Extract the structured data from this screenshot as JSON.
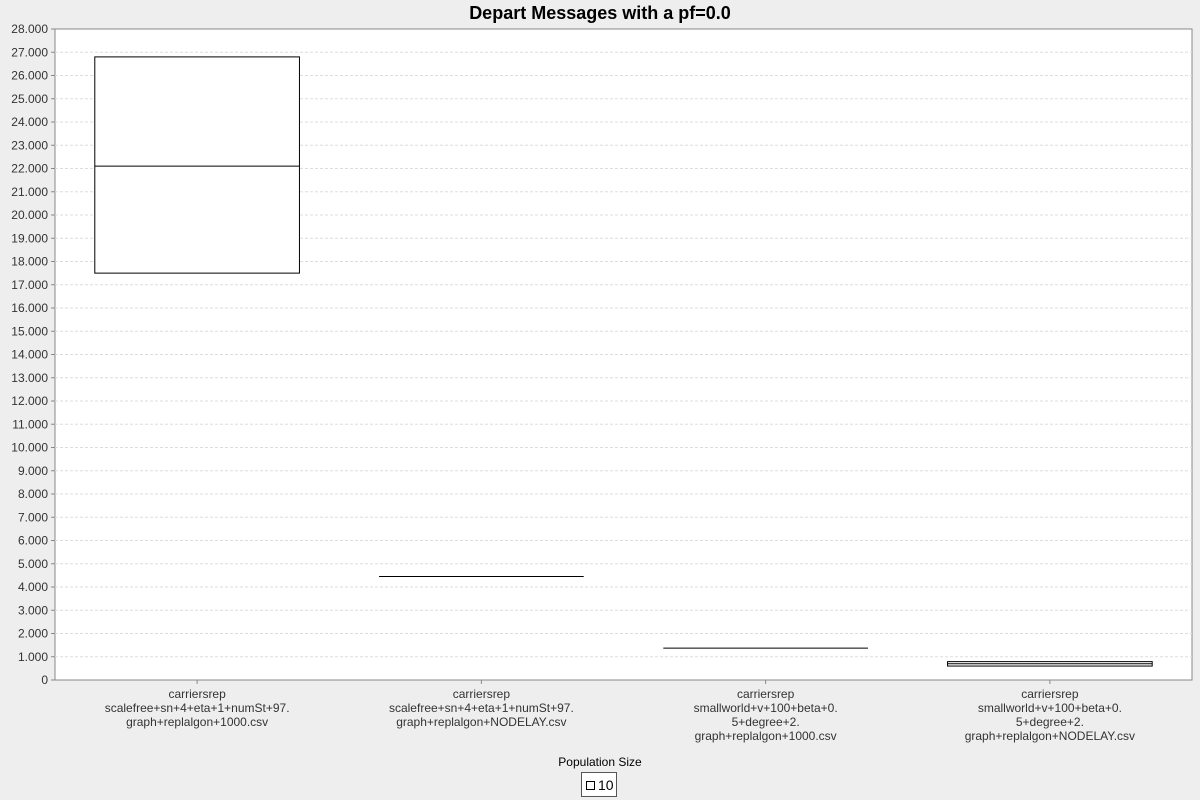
{
  "chart_data": {
    "type": "boxplot",
    "title": "Depart Messages with a pf=0.0",
    "ylim": [
      0,
      28000
    ],
    "yticks": [
      {
        "value": 0,
        "label": "0"
      },
      {
        "value": 1000,
        "label": "1.000"
      },
      {
        "value": 2000,
        "label": "2.000"
      },
      {
        "value": 3000,
        "label": "3.000"
      },
      {
        "value": 4000,
        "label": "4.000"
      },
      {
        "value": 5000,
        "label": "5.000"
      },
      {
        "value": 6000,
        "label": "6.000"
      },
      {
        "value": 7000,
        "label": "7.000"
      },
      {
        "value": 8000,
        "label": "8.000"
      },
      {
        "value": 9000,
        "label": "9.000"
      },
      {
        "value": 10000,
        "label": "10.000"
      },
      {
        "value": 11000,
        "label": "11.000"
      },
      {
        "value": 12000,
        "label": "12.000"
      },
      {
        "value": 13000,
        "label": "13.000"
      },
      {
        "value": 14000,
        "label": "14.000"
      },
      {
        "value": 15000,
        "label": "15.000"
      },
      {
        "value": 16000,
        "label": "16.000"
      },
      {
        "value": 17000,
        "label": "17.000"
      },
      {
        "value": 18000,
        "label": "18.000"
      },
      {
        "value": 19000,
        "label": "19.000"
      },
      {
        "value": 20000,
        "label": "20.000"
      },
      {
        "value": 21000,
        "label": "21.000"
      },
      {
        "value": 22000,
        "label": "22.000"
      },
      {
        "value": 23000,
        "label": "23.000"
      },
      {
        "value": 24000,
        "label": "24.000"
      },
      {
        "value": 25000,
        "label": "25.000"
      },
      {
        "value": 26000,
        "label": "26.000"
      },
      {
        "value": 27000,
        "label": "27.000"
      },
      {
        "value": 28000,
        "label": "28.000"
      }
    ],
    "grid": true,
    "legend_position": "bottom",
    "legend_title": "Population Size",
    "categories": [
      {
        "lines": [
          "carriersrep",
          "scalefree+sn+4+eta+1+numSt+97.",
          "graph+replalgon+1000.csv"
        ]
      },
      {
        "lines": [
          "carriersrep",
          "scalefree+sn+4+eta+1+numSt+97.",
          "graph+replalgon+NODELAY.csv"
        ]
      },
      {
        "lines": [
          "carriersrep",
          "smallworld+v+100+beta+0.",
          "5+degree+2.",
          "graph+replalgon+1000.csv"
        ]
      },
      {
        "lines": [
          "carriersrep",
          "smallworld+v+100+beta+0.",
          "5+degree+2.",
          "graph+replalgon+NODELAY.csv"
        ]
      }
    ],
    "series": [
      {
        "name": "10",
        "color": "#ffffff",
        "stroke": "#000000",
        "boxes": [
          {
            "q1": 17500,
            "median": 22100,
            "q3": 26800
          },
          {
            "q1": 4450,
            "median": 4450,
            "q3": 4450
          },
          {
            "q1": 1370,
            "median": 1370,
            "q3": 1370
          },
          {
            "q1": 600,
            "median": 700,
            "q3": 790
          }
        ]
      }
    ]
  }
}
